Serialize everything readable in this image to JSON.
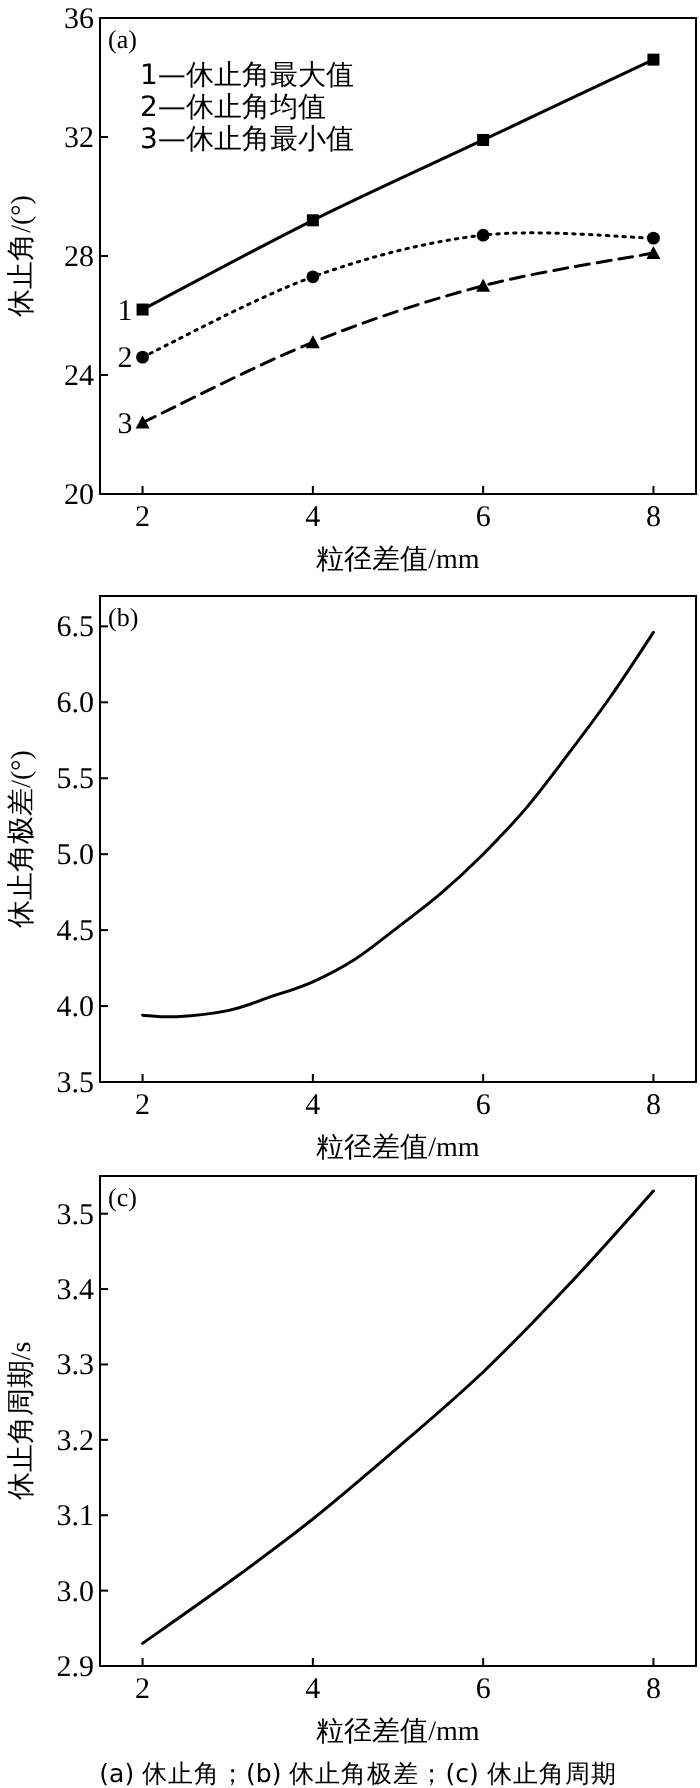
{
  "chart_data": [
    {
      "type": "line",
      "xlabel": "粒径差值/mm",
      "ylabel": "休止角/(°)",
      "xlim": [
        1.5,
        8.5
      ],
      "ylim": [
        20,
        36
      ],
      "xticks": [
        2,
        4,
        6,
        8
      ],
      "yticks": [
        20,
        24,
        28,
        32,
        36
      ],
      "grid": false,
      "annotations": [
        "(a)",
        "1—休止角最大值",
        "2—休止角均值",
        "3—休止角最小值"
      ],
      "series": [
        {
          "name": "1",
          "color": "#000000",
          "x": [
            2,
            4,
            6,
            8
          ],
          "values": [
            26.2,
            29.2,
            31.9,
            34.6
          ],
          "marker": "square",
          "line_style": "solid"
        },
        {
          "name": "2",
          "color": "#000000",
          "x": [
            2,
            4,
            6,
            8
          ],
          "values": [
            24.6,
            27.3,
            28.7,
            28.6
          ],
          "marker": "circle",
          "line_style": "dotted"
        },
        {
          "name": "3",
          "color": "#000000",
          "x": [
            2,
            4,
            6,
            8
          ],
          "values": [
            22.4,
            25.1,
            27.0,
            28.1
          ],
          "marker": "triangle",
          "line_style": "dashed"
        }
      ]
    },
    {
      "type": "line",
      "xlabel": "粒径差值/mm",
      "ylabel": "休止角极差/(°)",
      "xlim": [
        1.5,
        8.5
      ],
      "ylim": [
        3.5,
        6.7
      ],
      "xticks": [
        2,
        4,
        6,
        8
      ],
      "yticks": [
        {
          "value": 3.5,
          "label": "3.5"
        },
        {
          "value": 4,
          "label": "4.0"
        },
        {
          "value": 4.5,
          "label": "4.5"
        },
        {
          "value": 5,
          "label": "5.0"
        },
        {
          "value": 5.5,
          "label": "5.5"
        },
        {
          "value": 6,
          "label": "6.0"
        },
        {
          "value": 6.5,
          "label": "6.5"
        }
      ],
      "grid": false,
      "annotations": [
        "(b)"
      ],
      "x": [
        2,
        2.4,
        3,
        3.5,
        4,
        4.5,
        5,
        5.5,
        6,
        6.5,
        7,
        7.5,
        8
      ],
      "series": [
        {
          "color": "#000000",
          "values": [
            3.94,
            3.93,
            3.97,
            4.06,
            4.16,
            4.31,
            4.52,
            4.74,
            5.0,
            5.3,
            5.66,
            6.04,
            6.46
          ]
        }
      ]
    },
    {
      "type": "line",
      "xlabel": "粒径差值/mm",
      "ylabel": "休止角周期/s",
      "xlim": [
        1.5,
        8.5
      ],
      "ylim": [
        2.9,
        3.55
      ],
      "xticks": [
        2,
        4,
        6,
        8
      ],
      "yticks": [
        {
          "value": 2.9,
          "label": "2.9"
        },
        {
          "value": 3,
          "label": "3.0"
        },
        {
          "value": 3.1,
          "label": "3.1"
        },
        {
          "value": 3.2,
          "label": "3.2"
        },
        {
          "value": 3.3,
          "label": "3.3"
        },
        {
          "value": 3.4,
          "label": "3.4"
        },
        {
          "value": 3.5,
          "label": "3.5"
        }
      ],
      "grid": false,
      "annotations": [
        "(c)",
        "(a) 休止角；(b) 休止角极差；(c) 休止角周期"
      ],
      "x": [
        2,
        3,
        4,
        5,
        6,
        7,
        8
      ],
      "series": [
        {
          "color": "#000000",
          "values": [
            2.93,
            3.01,
            3.095,
            3.19,
            3.29,
            3.405,
            3.53
          ]
        }
      ]
    }
  ]
}
